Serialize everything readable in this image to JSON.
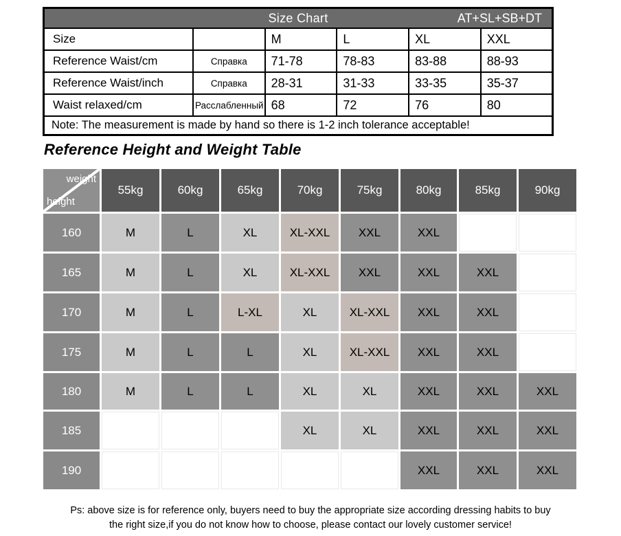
{
  "size_chart": {
    "title": "Size Chart",
    "code": "AT+SL+SB+DT",
    "rows": [
      {
        "label": "Size",
        "ref": "",
        "values": [
          "M",
          "L",
          "XL",
          "XXL"
        ]
      },
      {
        "label": "Reference Waist/cm",
        "ref": "Справка",
        "values": [
          "71-78",
          "78-83",
          "83-88",
          "88-93"
        ]
      },
      {
        "label": "Reference Waist/inch",
        "ref": "Справка",
        "values": [
          "28-31",
          "31-33",
          "33-35",
          "35-37"
        ]
      },
      {
        "label": "Waist relaxed/cm",
        "ref": "Расслабленный",
        "values": [
          "68",
          "72",
          "76",
          "80"
        ]
      }
    ],
    "note": "Note: The measurement is made by hand so there is 1-2 inch tolerance acceptable!"
  },
  "heading": "Reference Height and Weight Table",
  "grid": {
    "corner": {
      "top": "weight",
      "bottom": "height"
    },
    "weights": [
      "55kg",
      "60kg",
      "65kg",
      "70kg",
      "75kg",
      "80kg",
      "85kg",
      "90kg"
    ],
    "rows": [
      {
        "height": "160",
        "cells": [
          {
            "t": "M",
            "tone": "light"
          },
          {
            "t": "L",
            "tone": "mid"
          },
          {
            "t": "XL",
            "tone": "light"
          },
          {
            "t": "XL-XXL",
            "tone": "taupe"
          },
          {
            "t": "XXL",
            "tone": "mid"
          },
          {
            "t": "XXL",
            "tone": "mid"
          },
          {
            "t": "",
            "tone": "empty"
          },
          {
            "t": "",
            "tone": "empty"
          }
        ]
      },
      {
        "height": "165",
        "cells": [
          {
            "t": "M",
            "tone": "light"
          },
          {
            "t": "L",
            "tone": "mid"
          },
          {
            "t": "XL",
            "tone": "light"
          },
          {
            "t": "XL-XXL",
            "tone": "taupe"
          },
          {
            "t": "XXL",
            "tone": "mid"
          },
          {
            "t": "XXL",
            "tone": "mid"
          },
          {
            "t": "XXL",
            "tone": "mid"
          },
          {
            "t": "",
            "tone": "empty"
          }
        ]
      },
      {
        "height": "170",
        "cells": [
          {
            "t": "M",
            "tone": "light"
          },
          {
            "t": "L",
            "tone": "mid"
          },
          {
            "t": "L-XL",
            "tone": "taupe"
          },
          {
            "t": "XL",
            "tone": "light"
          },
          {
            "t": "XL-XXL",
            "tone": "taupe"
          },
          {
            "t": "XXL",
            "tone": "mid"
          },
          {
            "t": "XXL",
            "tone": "mid"
          },
          {
            "t": "",
            "tone": "empty"
          }
        ]
      },
      {
        "height": "175",
        "cells": [
          {
            "t": "M",
            "tone": "light"
          },
          {
            "t": "L",
            "tone": "mid"
          },
          {
            "t": "L",
            "tone": "mid"
          },
          {
            "t": "XL",
            "tone": "light"
          },
          {
            "t": "XL-XXL",
            "tone": "taupe"
          },
          {
            "t": "XXL",
            "tone": "mid"
          },
          {
            "t": "XXL",
            "tone": "mid"
          },
          {
            "t": "",
            "tone": "empty"
          }
        ]
      },
      {
        "height": "180",
        "cells": [
          {
            "t": "M",
            "tone": "light"
          },
          {
            "t": "L",
            "tone": "mid"
          },
          {
            "t": "L",
            "tone": "mid"
          },
          {
            "t": "XL",
            "tone": "light"
          },
          {
            "t": "XL",
            "tone": "light"
          },
          {
            "t": "XXL",
            "tone": "mid"
          },
          {
            "t": "XXL",
            "tone": "mid"
          },
          {
            "t": "XXL",
            "tone": "mid"
          }
        ]
      },
      {
        "height": "185",
        "cells": [
          {
            "t": "",
            "tone": "empty"
          },
          {
            "t": "",
            "tone": "empty"
          },
          {
            "t": "",
            "tone": "empty"
          },
          {
            "t": "XL",
            "tone": "light"
          },
          {
            "t": "XL",
            "tone": "light"
          },
          {
            "t": "XXL",
            "tone": "mid"
          },
          {
            "t": "XXL",
            "tone": "mid"
          },
          {
            "t": "XXL",
            "tone": "mid"
          }
        ]
      },
      {
        "height": "190",
        "cells": [
          {
            "t": "",
            "tone": "empty"
          },
          {
            "t": "",
            "tone": "empty"
          },
          {
            "t": "",
            "tone": "empty"
          },
          {
            "t": "",
            "tone": "empty"
          },
          {
            "t": "",
            "tone": "empty"
          },
          {
            "t": "XXL",
            "tone": "mid"
          },
          {
            "t": "XXL",
            "tone": "mid"
          },
          {
            "t": "XXL",
            "tone": "mid"
          }
        ]
      }
    ]
  },
  "footer": {
    "line1": "Ps: above size is for reference only, buyers need to buy the appropriate size according dressing habits to buy",
    "line2": "the right size,if you do not know how to choose, please contact our lovely customer service!"
  },
  "colors": {
    "table_header_bg": "#6b6b6b",
    "table_header_text": "#ffffff",
    "kg_header_bg": "#575757",
    "corner_bg": "#8f8f8f",
    "height_header_bg": "#898989",
    "cell_light": "#c9c9c9",
    "cell_mid": "#8f8f8f",
    "cell_taupe": "#c4bab5",
    "cell_empty_border": "#e9e9e9"
  }
}
